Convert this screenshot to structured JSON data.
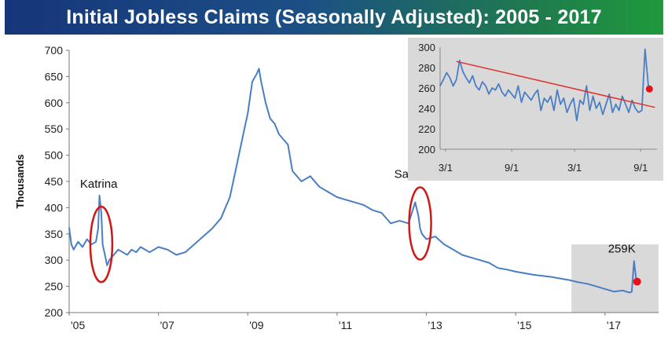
{
  "title": "Initial Jobless Claims (Seasonally Adjusted): 2005 - 2017",
  "colors": {
    "line": "#4a7ec4",
    "highlight": "#d9d9d9",
    "marker": "#e0141a",
    "trend": "#e03030",
    "ellipse": "#d01818"
  },
  "chart_data": [
    {
      "type": "line",
      "title": "Initial Jobless Claims (Seasonally Adjusted): 2005 - 2017",
      "ylabel": "Thousands",
      "xlabel": "",
      "ylim": [
        200,
        700
      ],
      "xlim": [
        2005.0,
        2018.2
      ],
      "yticks": [
        200,
        250,
        300,
        350,
        400,
        450,
        500,
        550,
        600,
        650,
        700
      ],
      "xticks": [
        {
          "value": 2005,
          "label": "'05"
        },
        {
          "value": 2007,
          "label": "'07"
        },
        {
          "value": 2009,
          "label": "'09"
        },
        {
          "value": 2011,
          "label": "'11"
        },
        {
          "value": 2013,
          "label": "'13"
        },
        {
          "value": 2015,
          "label": "'15"
        },
        {
          "value": 2017,
          "label": "'17"
        }
      ],
      "grid": false,
      "series": [
        {
          "x": [
            2005.0,
            2005.05,
            2005.1,
            2005.2,
            2005.3,
            2005.4,
            2005.5,
            2005.6,
            2005.65,
            2005.68,
            2005.72,
            2005.75,
            2005.8,
            2005.85,
            2005.9,
            2006.0,
            2006.1,
            2006.2,
            2006.3,
            2006.4,
            2006.5,
            2006.6,
            2006.7,
            2006.8,
            2006.9,
            2007.0,
            2007.2,
            2007.4,
            2007.6,
            2007.8,
            2008.0,
            2008.2,
            2008.4,
            2008.6,
            2008.75,
            2008.85,
            2009.0,
            2009.1,
            2009.2,
            2009.25,
            2009.3,
            2009.4,
            2009.5,
            2009.6,
            2009.7,
            2009.8,
            2009.9,
            2010.0,
            2010.2,
            2010.4,
            2010.6,
            2010.8,
            2011.0,
            2011.2,
            2011.4,
            2011.6,
            2011.8,
            2012.0,
            2012.2,
            2012.4,
            2012.6,
            2012.75,
            2012.82,
            2012.86,
            2012.9,
            2013.0,
            2013.2,
            2013.4,
            2013.6,
            2013.8,
            2014.0,
            2014.2,
            2014.4,
            2014.6,
            2014.8,
            2015.0,
            2015.2,
            2015.4,
            2015.6,
            2015.8,
            2016.0,
            2016.2,
            2016.4,
            2016.6,
            2016.8,
            2017.0,
            2017.2,
            2017.4,
            2017.55,
            2017.6,
            2017.65,
            2017.7,
            2017.72
          ],
          "values": [
            362,
            330,
            320,
            335,
            325,
            340,
            330,
            335,
            360,
            423,
            390,
            330,
            310,
            290,
            300,
            310,
            320,
            315,
            310,
            320,
            315,
            325,
            320,
            315,
            320,
            325,
            320,
            310,
            315,
            330,
            345,
            360,
            380,
            420,
            480,
            520,
            580,
            640,
            655,
            665,
            640,
            600,
            570,
            560,
            540,
            530,
            520,
            470,
            450,
            460,
            440,
            430,
            420,
            415,
            410,
            405,
            395,
            390,
            370,
            375,
            370,
            410,
            385,
            360,
            350,
            340,
            345,
            330,
            320,
            310,
            305,
            300,
            295,
            285,
            282,
            278,
            275,
            272,
            270,
            268,
            265,
            262,
            258,
            255,
            250,
            245,
            240,
            242,
            238,
            240,
            298,
            262,
            259
          ]
        }
      ],
      "annotations": [
        {
          "label": "Katrina",
          "x": 2005.72,
          "y": 423
        },
        {
          "label": "Sandy",
          "x": 2012.86,
          "y": 395
        },
        {
          "label": "259K",
          "x": 2017.72,
          "y": 259
        }
      ],
      "highlight_region": {
        "x": [
          2016.25,
          2018.2
        ],
        "y": [
          200,
          330
        ]
      }
    },
    {
      "type": "line",
      "title": "",
      "ylim": [
        200,
        300
      ],
      "yticks": [
        200,
        220,
        240,
        260,
        280,
        300
      ],
      "xticks": [
        {
          "value": 0.5,
          "label": "3/1"
        },
        {
          "value": 6.6,
          "label": "9/1"
        },
        {
          "value": 12.4,
          "label": "3/1"
        },
        {
          "value": 18.5,
          "label": "9/1"
        }
      ],
      "xlim": [
        0,
        20
      ],
      "grid": false,
      "series": [
        {
          "x": [
            0.0,
            0.3,
            0.6,
            0.9,
            1.2,
            1.5,
            1.8,
            2.1,
            2.4,
            2.7,
            3.0,
            3.3,
            3.6,
            3.9,
            4.2,
            4.5,
            4.8,
            5.1,
            5.4,
            5.7,
            6.0,
            6.3,
            6.6,
            6.9,
            7.2,
            7.5,
            7.8,
            8.1,
            8.4,
            8.7,
            9.0,
            9.3,
            9.6,
            9.9,
            10.2,
            10.5,
            10.8,
            11.1,
            11.4,
            11.7,
            12.0,
            12.3,
            12.6,
            12.9,
            13.2,
            13.5,
            13.8,
            14.1,
            14.4,
            14.7,
            15.0,
            15.3,
            15.6,
            15.9,
            16.2,
            16.5,
            16.8,
            17.1,
            17.4,
            17.7,
            18.0,
            18.3,
            18.6,
            18.9,
            19.2
          ],
          "values": [
            262,
            268,
            275,
            270,
            262,
            268,
            287,
            276,
            270,
            265,
            272,
            262,
            258,
            266,
            262,
            254,
            260,
            258,
            264,
            256,
            252,
            258,
            254,
            250,
            262,
            246,
            256,
            252,
            248,
            254,
            258,
            238,
            250,
            246,
            252,
            238,
            258,
            244,
            250,
            236,
            244,
            250,
            228,
            248,
            244,
            262,
            238,
            252,
            240,
            246,
            234,
            244,
            254,
            236,
            244,
            238,
            252,
            244,
            236,
            248,
            240,
            236,
            238,
            298,
            262
          ]
        },
        {
          "name": "",
          "type": "trend",
          "x": [
            1.5,
            19.8
          ],
          "values": [
            286,
            241
          ]
        }
      ],
      "marker": {
        "x": 19.3,
        "y": 259
      }
    }
  ]
}
